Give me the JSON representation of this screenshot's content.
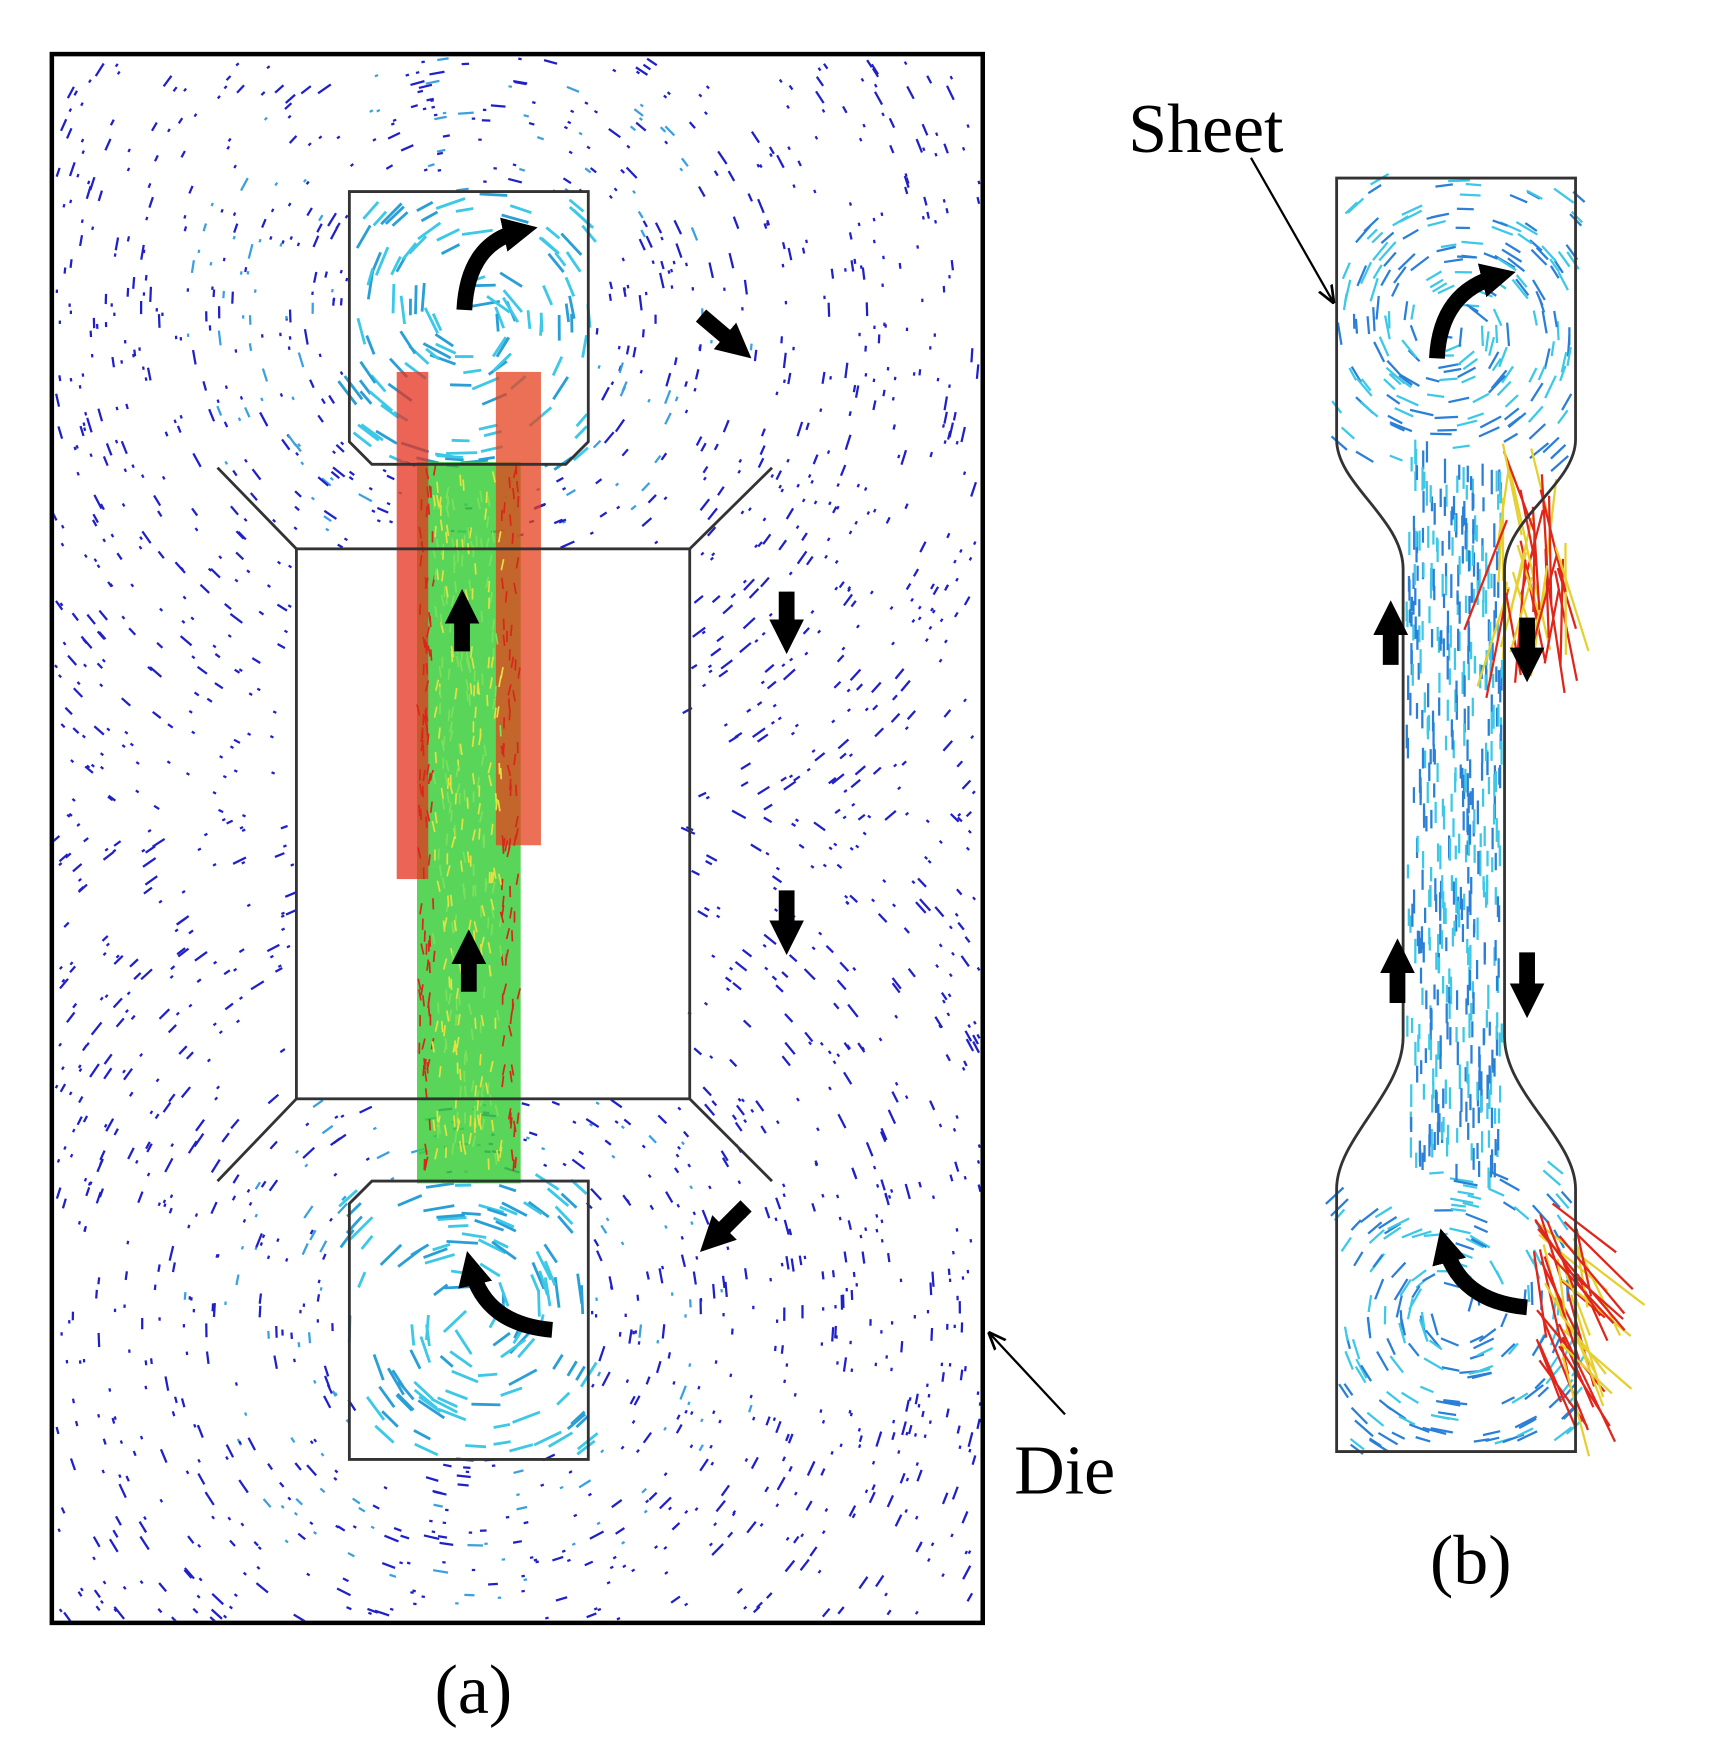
{
  "panel_a": {
    "die_label": "Die",
    "label": "(a)"
  },
  "panel_b": {
    "sheet_label": "Sheet",
    "label": "(b)"
  }
}
